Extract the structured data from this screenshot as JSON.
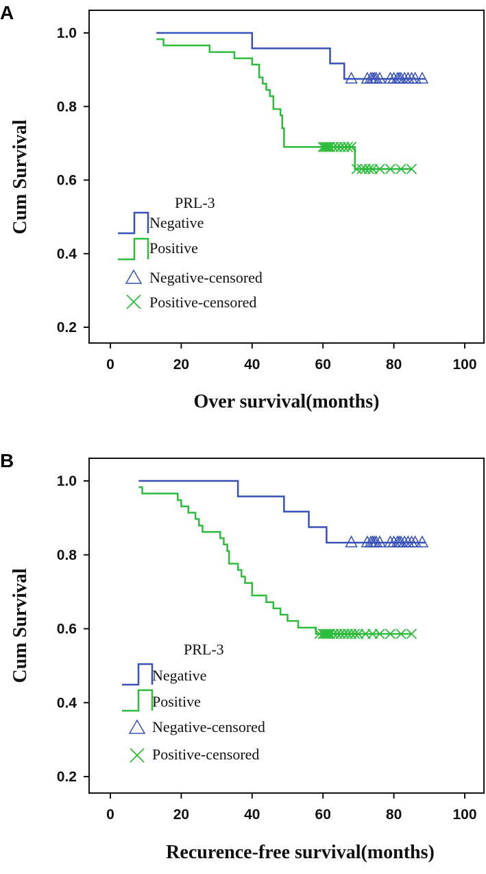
{
  "colors": {
    "negative": "#3650b8",
    "positive": "#2dbb3c"
  },
  "chart_data": [
    {
      "type": "line",
      "panel_label": "A",
      "xlabel": "Over survival(months)",
      "ylabel": "Cum Survival",
      "xlim": [
        0,
        100
      ],
      "ylim": [
        0.2,
        1.0
      ],
      "xticks": [
        "0",
        "20",
        "40",
        "60",
        "80",
        "100"
      ],
      "yticks": [
        "0.2",
        "0.4",
        "0.6",
        "0.8",
        "1.0"
      ],
      "grid": false,
      "legend": {
        "title": "PRL-3",
        "placement": "center-left",
        "entries": [
          "Negative",
          "Positive",
          "Negative-censored",
          "Positive-censored"
        ]
      },
      "series": [
        {
          "name": "Negative",
          "steps": [
            [
              13,
              1.0
            ],
            [
              40,
              0.958
            ],
            [
              62,
              0.917
            ],
            [
              66,
              0.875
            ]
          ],
          "end": 89,
          "censored": [
            68,
            72.5,
            73.5,
            74,
            74.5,
            75,
            76,
            79,
            80,
            81,
            81.5,
            82,
            83,
            84,
            85,
            86,
            88
          ]
        },
        {
          "name": "Positive",
          "steps": [
            [
              13,
              0.983
            ],
            [
              15,
              0.966
            ],
            [
              28,
              0.948
            ],
            [
              35,
              0.931
            ],
            [
              40,
              0.914
            ],
            [
              42,
              0.879
            ],
            [
              43,
              0.862
            ],
            [
              44,
              0.845
            ],
            [
              45,
              0.828
            ],
            [
              46,
              0.793
            ],
            [
              48,
              0.776
            ],
            [
              48.5,
              0.741
            ],
            [
              49,
              0.69
            ],
            [
              69,
              0.63
            ]
          ],
          "end": 85,
          "censored": [
            60,
            60.5,
            61,
            61.5,
            62,
            63,
            64,
            65,
            66,
            67,
            68,
            69.5,
            71,
            72,
            73,
            74,
            76,
            79,
            82,
            85
          ]
        }
      ]
    },
    {
      "type": "line",
      "panel_label": "B",
      "xlabel": "Recurence-free survival(months)",
      "ylabel": "Cum Survival",
      "xlim": [
        0,
        100
      ],
      "ylim": [
        0.2,
        1.0
      ],
      "xticks": [
        "0",
        "20",
        "40",
        "60",
        "80",
        "100"
      ],
      "yticks": [
        "0.2",
        "0.4",
        "0.6",
        "0.8",
        "1.0"
      ],
      "grid": false,
      "legend": {
        "title": "PRL-3",
        "placement": "center-left",
        "entries": [
          "Negative",
          "Positive",
          "Negative-censored",
          "Positive-censored"
        ]
      },
      "series": [
        {
          "name": "Negative",
          "steps": [
            [
              8,
              1.0
            ],
            [
              36,
              0.958
            ],
            [
              49,
              0.917
            ],
            [
              56,
              0.875
            ],
            [
              61,
              0.833
            ]
          ],
          "end": 89,
          "censored": [
            68,
            72.5,
            73.5,
            74,
            74.5,
            75,
            76,
            79,
            80,
            81,
            81.5,
            82,
            83,
            84,
            85,
            86,
            88
          ]
        },
        {
          "name": "Positive",
          "steps": [
            [
              8,
              0.983
            ],
            [
              9,
              0.966
            ],
            [
              19,
              0.948
            ],
            [
              20,
              0.931
            ],
            [
              22,
              0.914
            ],
            [
              24,
              0.897
            ],
            [
              25,
              0.879
            ],
            [
              26,
              0.862
            ],
            [
              31,
              0.845
            ],
            [
              32,
              0.828
            ],
            [
              33,
              0.81
            ],
            [
              33.5,
              0.776
            ],
            [
              36,
              0.759
            ],
            [
              37,
              0.741
            ],
            [
              38,
              0.724
            ],
            [
              40,
              0.69
            ],
            [
              44,
              0.672
            ],
            [
              46,
              0.655
            ],
            [
              48,
              0.638
            ],
            [
              50,
              0.621
            ],
            [
              53,
              0.603
            ],
            [
              58,
              0.586
            ]
          ],
          "end": 85,
          "censored": [
            59,
            60,
            60.5,
            61,
            61.5,
            62,
            63,
            64,
            65,
            66,
            67,
            68,
            69,
            70,
            72,
            74,
            76,
            79,
            82,
            85
          ]
        }
      ]
    }
  ]
}
